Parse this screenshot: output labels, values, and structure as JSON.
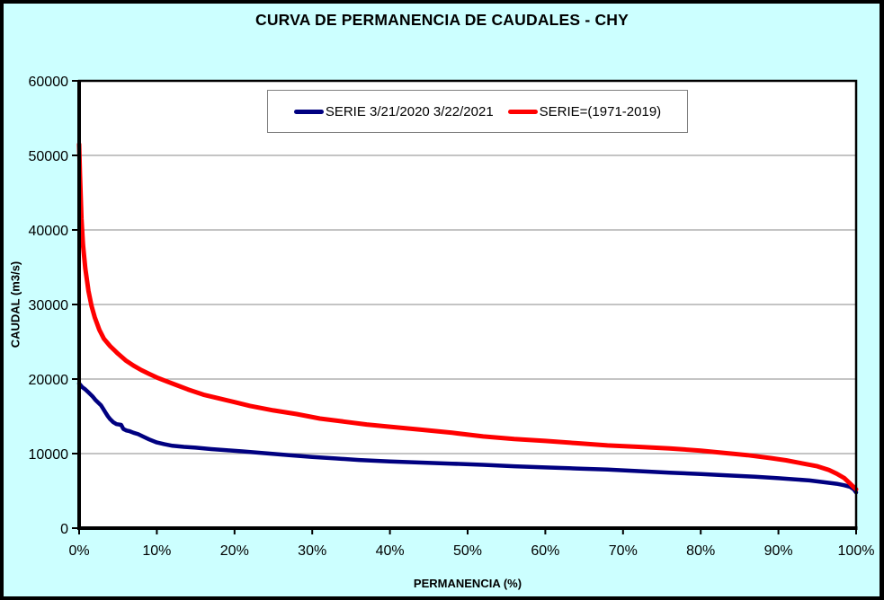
{
  "chart_data": {
    "type": "line",
    "title": "CURVA DE PERMANENCIA DE CAUDALES - CHY",
    "xlabel": "PERMANENCIA (%)",
    "ylabel": "CAUDAL (m3/s)",
    "xlim": [
      0,
      100
    ],
    "ylim": [
      0,
      60000
    ],
    "grid": "horizontal-only",
    "legend_position": "top-center-inside",
    "background_color": "#CCFFFF",
    "plot_background_color": "#FFFFFF",
    "gridline_color": "#A0A0A0",
    "axis_color": "#000000",
    "x_ticks": [
      {
        "v": 0,
        "label": "0%"
      },
      {
        "v": 10,
        "label": "10%"
      },
      {
        "v": 20,
        "label": "20%"
      },
      {
        "v": 30,
        "label": "30%"
      },
      {
        "v": 40,
        "label": "40%"
      },
      {
        "v": 50,
        "label": "50%"
      },
      {
        "v": 60,
        "label": "60%"
      },
      {
        "v": 70,
        "label": "70%"
      },
      {
        "v": 80,
        "label": "80%"
      },
      {
        "v": 90,
        "label": "90%"
      },
      {
        "v": 100,
        "label": "100%"
      }
    ],
    "y_ticks": [
      {
        "v": 0,
        "label": "0"
      },
      {
        "v": 10000,
        "label": "10000"
      },
      {
        "v": 20000,
        "label": "20000"
      },
      {
        "v": 30000,
        "label": "30000"
      },
      {
        "v": 40000,
        "label": "40000"
      },
      {
        "v": 50000,
        "label": "50000"
      },
      {
        "v": 60000,
        "label": "60000"
      }
    ],
    "series": [
      {
        "name": "SERIE 3/21/2020 3/22/2021",
        "color": "#000080",
        "stroke_width": 4.5,
        "points": [
          [
            0,
            19400
          ],
          [
            0.4,
            18900
          ],
          [
            0.8,
            18600
          ],
          [
            1.2,
            18200
          ],
          [
            1.7,
            17700
          ],
          [
            2.1,
            17200
          ],
          [
            2.5,
            16800
          ],
          [
            2.8,
            16500
          ],
          [
            3.1,
            16000
          ],
          [
            3.4,
            15500
          ],
          [
            3.7,
            15000
          ],
          [
            4,
            14600
          ],
          [
            4.4,
            14200
          ],
          [
            4.8,
            13950
          ],
          [
            5.4,
            13850
          ],
          [
            5.7,
            13300
          ],
          [
            6.1,
            13100
          ],
          [
            6.5,
            13000
          ],
          [
            7,
            12800
          ],
          [
            7.6,
            12600
          ],
          [
            8.2,
            12300
          ],
          [
            9,
            11900
          ],
          [
            10,
            11500
          ],
          [
            11,
            11250
          ],
          [
            12,
            11050
          ],
          [
            13.5,
            10900
          ],
          [
            15,
            10800
          ],
          [
            17,
            10600
          ],
          [
            19,
            10450
          ],
          [
            21,
            10300
          ],
          [
            24,
            10050
          ],
          [
            27,
            9800
          ],
          [
            30,
            9550
          ],
          [
            33,
            9350
          ],
          [
            36,
            9150
          ],
          [
            40,
            8950
          ],
          [
            44,
            8800
          ],
          [
            48,
            8650
          ],
          [
            52,
            8500
          ],
          [
            56,
            8300
          ],
          [
            60,
            8150
          ],
          [
            64,
            8000
          ],
          [
            68,
            7850
          ],
          [
            72,
            7650
          ],
          [
            76,
            7450
          ],
          [
            80,
            7250
          ],
          [
            84,
            7050
          ],
          [
            87,
            6900
          ],
          [
            90,
            6700
          ],
          [
            92,
            6550
          ],
          [
            94,
            6400
          ],
          [
            96,
            6150
          ],
          [
            97.5,
            5950
          ],
          [
            98.5,
            5750
          ],
          [
            99.2,
            5550
          ],
          [
            99.7,
            5200
          ],
          [
            100,
            4800
          ]
        ]
      },
      {
        "name": "SERIE=(1971-2019)",
        "color": "#FF0000",
        "stroke_width": 5,
        "points": [
          [
            0,
            51500
          ],
          [
            0.1,
            47500
          ],
          [
            0.3,
            41500
          ],
          [
            0.5,
            38000
          ],
          [
            0.8,
            34800
          ],
          [
            1.2,
            31800
          ],
          [
            1.6,
            29800
          ],
          [
            2,
            28300
          ],
          [
            2.6,
            26600
          ],
          [
            3.2,
            25400
          ],
          [
            4,
            24400
          ],
          [
            5,
            23400
          ],
          [
            6,
            22500
          ],
          [
            7,
            21800
          ],
          [
            8,
            21200
          ],
          [
            9,
            20700
          ],
          [
            10,
            20200
          ],
          [
            11,
            19800
          ],
          [
            12.5,
            19200
          ],
          [
            14,
            18600
          ],
          [
            16,
            17900
          ],
          [
            18,
            17400
          ],
          [
            20,
            16900
          ],
          [
            22,
            16400
          ],
          [
            25,
            15800
          ],
          [
            28,
            15300
          ],
          [
            31,
            14700
          ],
          [
            34,
            14300
          ],
          [
            37,
            13900
          ],
          [
            40,
            13600
          ],
          [
            44,
            13200
          ],
          [
            48,
            12800
          ],
          [
            52,
            12300
          ],
          [
            56,
            11950
          ],
          [
            60,
            11700
          ],
          [
            64,
            11400
          ],
          [
            68,
            11100
          ],
          [
            72,
            10900
          ],
          [
            76,
            10700
          ],
          [
            80,
            10400
          ],
          [
            83,
            10100
          ],
          [
            86,
            9800
          ],
          [
            89,
            9400
          ],
          [
            91,
            9100
          ],
          [
            93,
            8700
          ],
          [
            95,
            8300
          ],
          [
            96.5,
            7800
          ],
          [
            97.5,
            7300
          ],
          [
            98.5,
            6700
          ],
          [
            99.2,
            6000
          ],
          [
            99.7,
            5500
          ],
          [
            100,
            5200
          ]
        ]
      }
    ]
  }
}
